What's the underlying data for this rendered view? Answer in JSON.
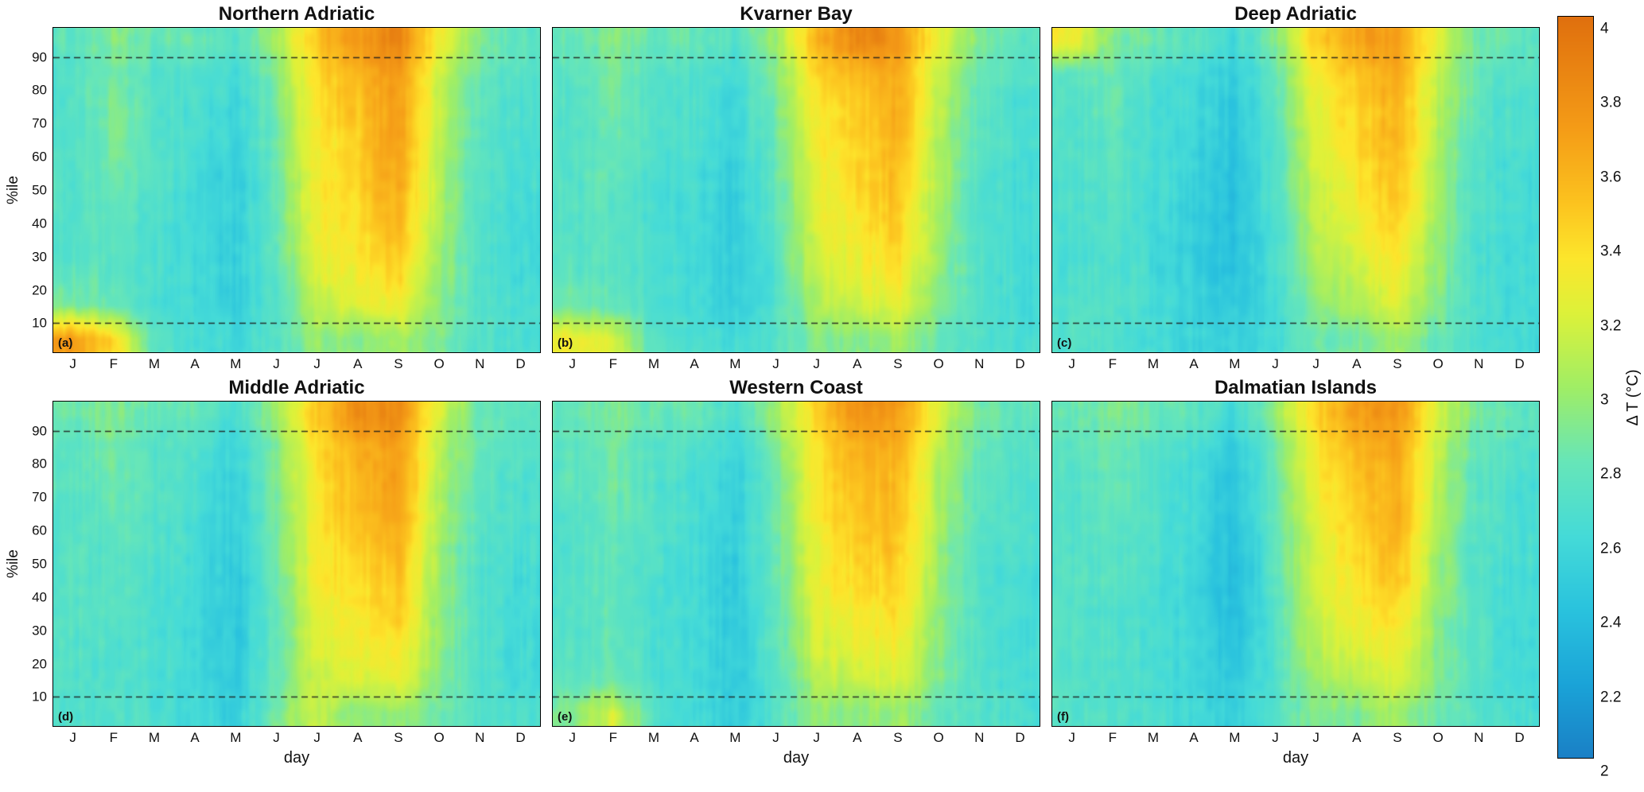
{
  "figure": {
    "xlabel": "day",
    "ylabel": "%ile",
    "x_ticks": [
      "J",
      "F",
      "M",
      "A",
      "M",
      "J",
      "J",
      "A",
      "S",
      "O",
      "N",
      "D"
    ],
    "y_ticks": [
      10,
      20,
      30,
      40,
      50,
      60,
      70,
      80,
      90
    ],
    "y_range": [
      1,
      99
    ],
    "reference_lines": [
      10,
      90
    ],
    "panels": [
      {
        "tag": "(a)",
        "title": "Northern Adriatic"
      },
      {
        "tag": "(b)",
        "title": "Kvarner Bay"
      },
      {
        "tag": "(c)",
        "title": "Deep Adriatic"
      },
      {
        "tag": "(d)",
        "title": "Middle Adriatic"
      },
      {
        "tag": "(e)",
        "title": "Western Coast"
      },
      {
        "tag": "(f)",
        "title": "Dalmatian Islands"
      }
    ],
    "colorbar": {
      "label": "Δ T (°C)",
      "range": [
        2,
        4
      ],
      "ticks": [
        {
          "v": 2,
          "label": "2"
        },
        {
          "v": 2.2,
          "label": "2.2"
        },
        {
          "v": 2.4,
          "label": "2.4"
        },
        {
          "v": 2.6,
          "label": "2.6"
        },
        {
          "v": 2.8,
          "label": "2.8"
        },
        {
          "v": 3,
          "label": "3"
        },
        {
          "v": 3.2,
          "label": "3.2"
        },
        {
          "v": 3.4,
          "label": "3.4"
        },
        {
          "v": 3.6,
          "label": "3.6"
        },
        {
          "v": 3.8,
          "label": "3.8"
        },
        {
          "v": 4,
          "label": "4"
        }
      ],
      "stops": [
        {
          "v": 2.0,
          "c": "#1a80c6"
        },
        {
          "v": 2.2,
          "c": "#1ba4d8"
        },
        {
          "v": 2.4,
          "c": "#2ac3de"
        },
        {
          "v": 2.6,
          "c": "#45dbd8"
        },
        {
          "v": 2.8,
          "c": "#67e6b9"
        },
        {
          "v": 3.0,
          "c": "#a0ee66"
        },
        {
          "v": 3.2,
          "c": "#ddf23a"
        },
        {
          "v": 3.35,
          "c": "#fde62c"
        },
        {
          "v": 3.5,
          "c": "#fcc31f"
        },
        {
          "v": 3.7,
          "c": "#f59c17"
        },
        {
          "v": 4.0,
          "c": "#e0700e"
        }
      ]
    }
  },
  "chart_data": [
    {
      "type": "heatmap",
      "title": "Northern Adriatic",
      "x": [
        "J",
        "F",
        "M",
        "A",
        "M",
        "J",
        "J",
        "A",
        "S",
        "O",
        "N",
        "D"
      ],
      "y_percentiles": [
        5,
        15,
        25,
        35,
        45,
        55,
        65,
        75,
        85,
        95
      ],
      "rows_order": "bottom-to-top",
      "value_label": "Δ T (°C)",
      "value_range": [
        2,
        4
      ],
      "values": [
        [
          3.7,
          3.4,
          2.75,
          2.65,
          2.6,
          2.7,
          2.95,
          2.9,
          3.05,
          2.9,
          2.7,
          2.65
        ],
        [
          2.9,
          2.8,
          2.65,
          2.6,
          2.5,
          2.7,
          3.1,
          3.2,
          3.3,
          2.95,
          2.7,
          2.65
        ],
        [
          2.75,
          2.75,
          2.65,
          2.6,
          2.5,
          2.75,
          3.2,
          3.3,
          3.45,
          3.0,
          2.7,
          2.6
        ],
        [
          2.7,
          2.75,
          2.65,
          2.6,
          2.5,
          2.8,
          3.25,
          3.35,
          3.55,
          3.0,
          2.7,
          2.6
        ],
        [
          2.7,
          2.8,
          2.65,
          2.6,
          2.5,
          2.8,
          3.3,
          3.4,
          3.6,
          3.05,
          2.7,
          2.6
        ],
        [
          2.7,
          2.85,
          2.7,
          2.6,
          2.5,
          2.8,
          3.3,
          3.45,
          3.65,
          3.05,
          2.7,
          2.65
        ],
        [
          2.7,
          2.9,
          2.7,
          2.65,
          2.55,
          2.85,
          3.3,
          3.45,
          3.7,
          3.1,
          2.75,
          2.65
        ],
        [
          2.7,
          2.9,
          2.7,
          2.65,
          2.55,
          2.85,
          3.35,
          3.5,
          3.7,
          3.1,
          2.75,
          2.65
        ],
        [
          2.7,
          2.85,
          2.7,
          2.7,
          2.6,
          2.9,
          3.4,
          3.55,
          3.75,
          3.15,
          2.8,
          2.7
        ],
        [
          2.75,
          2.9,
          2.8,
          2.8,
          2.7,
          3.0,
          3.5,
          3.7,
          3.85,
          3.3,
          2.9,
          2.75
        ]
      ]
    },
    {
      "type": "heatmap",
      "title": "Kvarner Bay",
      "x": [
        "J",
        "F",
        "M",
        "A",
        "M",
        "J",
        "J",
        "A",
        "S",
        "O",
        "N",
        "D"
      ],
      "y_percentiles": [
        5,
        15,
        25,
        35,
        45,
        55,
        65,
        75,
        85,
        95
      ],
      "rows_order": "bottom-to-top",
      "value_label": "Δ T (°C)",
      "value_range": [
        2,
        4
      ],
      "values": [
        [
          3.3,
          3.2,
          2.7,
          2.65,
          2.6,
          2.7,
          2.9,
          2.9,
          3.0,
          2.8,
          2.7,
          2.65
        ],
        [
          2.85,
          2.8,
          2.65,
          2.6,
          2.5,
          2.7,
          3.05,
          3.15,
          3.25,
          2.9,
          2.7,
          2.6
        ],
        [
          2.75,
          2.75,
          2.65,
          2.6,
          2.5,
          2.7,
          3.15,
          3.25,
          3.35,
          2.95,
          2.7,
          2.6
        ],
        [
          2.7,
          2.75,
          2.65,
          2.6,
          2.5,
          2.75,
          3.2,
          3.3,
          3.45,
          3.0,
          2.7,
          2.6
        ],
        [
          2.7,
          2.75,
          2.65,
          2.6,
          2.5,
          2.75,
          3.25,
          3.35,
          3.5,
          3.0,
          2.7,
          2.6
        ],
        [
          2.7,
          2.8,
          2.65,
          2.6,
          2.5,
          2.8,
          3.25,
          3.4,
          3.55,
          3.05,
          2.7,
          2.6
        ],
        [
          2.7,
          2.8,
          2.7,
          2.65,
          2.55,
          2.8,
          3.3,
          3.4,
          3.6,
          3.05,
          2.75,
          2.65
        ],
        [
          2.7,
          2.85,
          2.7,
          2.65,
          2.55,
          2.85,
          3.3,
          3.45,
          3.6,
          3.1,
          2.75,
          2.65
        ],
        [
          2.75,
          2.85,
          2.7,
          2.7,
          2.6,
          2.9,
          3.4,
          3.55,
          3.65,
          3.1,
          2.8,
          2.7
        ],
        [
          2.8,
          2.9,
          2.8,
          2.8,
          2.7,
          3.0,
          3.55,
          3.85,
          3.75,
          3.25,
          2.9,
          2.75
        ]
      ]
    },
    {
      "type": "heatmap",
      "title": "Deep Adriatic",
      "x": [
        "J",
        "F",
        "M",
        "A",
        "M",
        "J",
        "J",
        "A",
        "S",
        "O",
        "N",
        "D"
      ],
      "y_percentiles": [
        5,
        15,
        25,
        35,
        45,
        55,
        65,
        75,
        85,
        95
      ],
      "rows_order": "bottom-to-top",
      "value_label": "Δ T (°C)",
      "value_range": [
        2,
        4
      ],
      "values": [
        [
          2.7,
          2.7,
          2.6,
          2.55,
          2.5,
          2.6,
          2.8,
          2.85,
          3.0,
          2.8,
          2.65,
          2.6
        ],
        [
          2.7,
          2.7,
          2.6,
          2.55,
          2.45,
          2.6,
          2.9,
          3.05,
          3.2,
          2.9,
          2.65,
          2.6
        ],
        [
          2.65,
          2.7,
          2.6,
          2.5,
          2.4,
          2.65,
          3.0,
          3.15,
          3.3,
          2.95,
          2.65,
          2.6
        ],
        [
          2.65,
          2.7,
          2.6,
          2.5,
          2.4,
          2.65,
          3.05,
          3.25,
          3.4,
          2.95,
          2.65,
          2.6
        ],
        [
          2.65,
          2.7,
          2.6,
          2.5,
          2.4,
          2.7,
          3.1,
          3.3,
          3.5,
          3.0,
          2.7,
          2.6
        ],
        [
          2.65,
          2.75,
          2.65,
          2.55,
          2.4,
          2.7,
          3.15,
          3.35,
          3.55,
          3.0,
          2.7,
          2.6
        ],
        [
          2.7,
          2.75,
          2.65,
          2.55,
          2.45,
          2.7,
          3.2,
          3.4,
          3.6,
          3.05,
          2.7,
          2.65
        ],
        [
          2.7,
          2.8,
          2.65,
          2.6,
          2.45,
          2.75,
          3.25,
          3.4,
          3.6,
          3.05,
          2.75,
          2.65
        ],
        [
          2.75,
          2.8,
          2.7,
          2.6,
          2.5,
          2.8,
          3.3,
          3.5,
          3.65,
          3.1,
          2.75,
          2.7
        ],
        [
          3.3,
          2.9,
          2.8,
          2.75,
          2.6,
          2.9,
          3.45,
          3.65,
          3.7,
          3.2,
          2.85,
          2.75
        ]
      ]
    },
    {
      "type": "heatmap",
      "title": "Middle Adriatic",
      "x": [
        "J",
        "F",
        "M",
        "A",
        "M",
        "J",
        "J",
        "A",
        "S",
        "O",
        "N",
        "D"
      ],
      "y_percentiles": [
        5,
        15,
        25,
        35,
        45,
        55,
        65,
        75,
        85,
        95
      ],
      "rows_order": "bottom-to-top",
      "value_label": "Δ T (°C)",
      "value_range": [
        2,
        4
      ],
      "values": [
        [
          2.7,
          2.7,
          2.65,
          2.6,
          2.5,
          2.9,
          3.1,
          2.9,
          3.0,
          2.8,
          2.7,
          2.65
        ],
        [
          2.7,
          2.7,
          2.65,
          2.6,
          2.45,
          2.8,
          3.15,
          3.2,
          3.25,
          2.9,
          2.7,
          2.6
        ],
        [
          2.7,
          2.7,
          2.65,
          2.6,
          2.45,
          2.8,
          3.2,
          3.3,
          3.35,
          2.95,
          2.7,
          2.6
        ],
        [
          2.7,
          2.75,
          2.65,
          2.6,
          2.45,
          2.8,
          3.25,
          3.35,
          3.45,
          2.95,
          2.7,
          2.6
        ],
        [
          2.7,
          2.75,
          2.65,
          2.6,
          2.45,
          2.8,
          3.3,
          3.4,
          3.5,
          3.0,
          2.7,
          2.6
        ],
        [
          2.7,
          2.75,
          2.7,
          2.6,
          2.5,
          2.85,
          3.3,
          3.45,
          3.6,
          3.0,
          2.7,
          2.65
        ],
        [
          2.7,
          2.8,
          2.7,
          2.65,
          2.5,
          2.85,
          3.35,
          3.5,
          3.65,
          3.05,
          2.75,
          2.65
        ],
        [
          2.75,
          2.8,
          2.7,
          2.65,
          2.5,
          2.9,
          3.35,
          3.55,
          3.7,
          3.05,
          2.75,
          2.65
        ],
        [
          2.75,
          2.85,
          2.7,
          2.7,
          2.55,
          2.9,
          3.4,
          3.6,
          3.7,
          3.1,
          2.8,
          2.7
        ],
        [
          2.8,
          2.9,
          2.8,
          2.8,
          2.65,
          3.0,
          3.5,
          3.8,
          3.8,
          3.2,
          2.85,
          2.75
        ]
      ]
    },
    {
      "type": "heatmap",
      "title": "Western Coast",
      "x": [
        "J",
        "F",
        "M",
        "A",
        "M",
        "J",
        "J",
        "A",
        "S",
        "O",
        "N",
        "D"
      ],
      "y_percentiles": [
        5,
        15,
        25,
        35,
        45,
        55,
        65,
        75,
        85,
        95
      ],
      "rows_order": "bottom-to-top",
      "value_label": "Δ T (°C)",
      "value_range": [
        2,
        4
      ],
      "values": [
        [
          2.9,
          3.2,
          2.7,
          2.6,
          2.5,
          2.7,
          2.95,
          2.9,
          3.0,
          2.8,
          2.7,
          2.65
        ],
        [
          2.75,
          2.85,
          2.65,
          2.6,
          2.45,
          2.7,
          3.05,
          3.15,
          3.2,
          2.9,
          2.7,
          2.6
        ],
        [
          2.7,
          2.8,
          2.65,
          2.6,
          2.45,
          2.75,
          3.15,
          3.25,
          3.3,
          2.9,
          2.7,
          2.6
        ],
        [
          2.7,
          2.8,
          2.65,
          2.6,
          2.45,
          2.75,
          3.2,
          3.3,
          3.4,
          2.95,
          2.7,
          2.6
        ],
        [
          2.7,
          2.8,
          2.65,
          2.6,
          2.45,
          2.8,
          3.25,
          3.4,
          3.45,
          3.0,
          2.7,
          2.6
        ],
        [
          2.7,
          2.8,
          2.7,
          2.6,
          2.5,
          2.8,
          3.25,
          3.45,
          3.5,
          3.0,
          2.7,
          2.65
        ],
        [
          2.7,
          2.8,
          2.7,
          2.65,
          2.5,
          2.85,
          3.3,
          3.5,
          3.55,
          3.05,
          2.75,
          2.65
        ],
        [
          2.75,
          2.85,
          2.7,
          2.65,
          2.5,
          2.85,
          3.3,
          3.55,
          3.55,
          3.05,
          2.75,
          2.65
        ],
        [
          2.75,
          2.85,
          2.7,
          2.7,
          2.55,
          2.9,
          3.35,
          3.6,
          3.6,
          3.1,
          2.8,
          2.7
        ],
        [
          2.8,
          2.9,
          2.8,
          2.8,
          2.65,
          3.0,
          3.45,
          3.75,
          3.7,
          3.2,
          2.85,
          2.75
        ]
      ]
    },
    {
      "type": "heatmap",
      "title": "Dalmatian Islands",
      "x": [
        "J",
        "F",
        "M",
        "A",
        "M",
        "J",
        "J",
        "A",
        "S",
        "O",
        "N",
        "D"
      ],
      "y_percentiles": [
        5,
        15,
        25,
        35,
        45,
        55,
        65,
        75,
        85,
        95
      ],
      "rows_order": "bottom-to-top",
      "value_label": "Δ T (°C)",
      "value_range": [
        2,
        4
      ],
      "values": [
        [
          2.7,
          2.7,
          2.65,
          2.6,
          2.5,
          2.7,
          2.9,
          2.9,
          3.0,
          2.8,
          2.7,
          2.65
        ],
        [
          2.7,
          2.7,
          2.65,
          2.55,
          2.45,
          2.7,
          3.0,
          3.1,
          3.2,
          2.9,
          2.7,
          2.6
        ],
        [
          2.7,
          2.7,
          2.65,
          2.55,
          2.4,
          2.7,
          3.1,
          3.2,
          3.3,
          2.9,
          2.7,
          2.6
        ],
        [
          2.7,
          2.7,
          2.65,
          2.55,
          2.35,
          2.7,
          3.15,
          3.3,
          3.4,
          2.95,
          2.7,
          2.6
        ],
        [
          2.7,
          2.75,
          2.65,
          2.55,
          2.35,
          2.75,
          3.2,
          3.35,
          3.5,
          3.0,
          2.7,
          2.6
        ],
        [
          2.7,
          2.75,
          2.65,
          2.6,
          2.35,
          2.75,
          3.2,
          3.4,
          3.55,
          3.0,
          2.7,
          2.65
        ],
        [
          2.7,
          2.75,
          2.7,
          2.6,
          2.4,
          2.8,
          3.25,
          3.45,
          3.6,
          3.05,
          2.75,
          2.65
        ],
        [
          2.7,
          2.8,
          2.7,
          2.6,
          2.4,
          2.8,
          3.3,
          3.5,
          3.6,
          3.05,
          2.75,
          2.65
        ],
        [
          2.75,
          2.8,
          2.7,
          2.65,
          2.45,
          2.85,
          3.35,
          3.55,
          3.65,
          3.1,
          2.8,
          2.7
        ],
        [
          2.8,
          2.9,
          2.8,
          2.75,
          2.6,
          2.95,
          3.45,
          3.7,
          3.75,
          3.2,
          2.85,
          2.75
        ]
      ]
    }
  ]
}
